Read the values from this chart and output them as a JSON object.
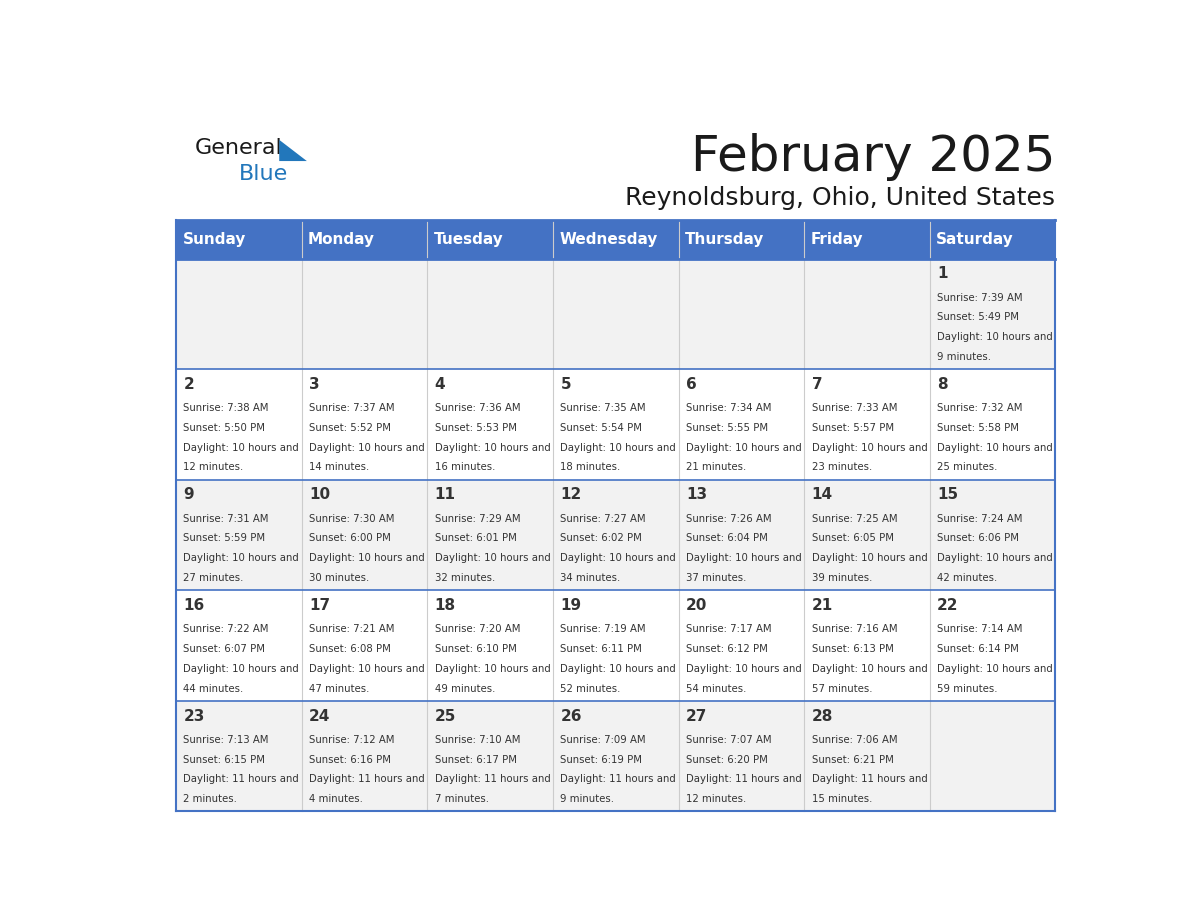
{
  "title": "February 2025",
  "subtitle": "Reynoldsburg, Ohio, United States",
  "header_color": "#4472C4",
  "header_text_color": "#FFFFFF",
  "border_color": "#4472C4",
  "day_names": [
    "Sunday",
    "Monday",
    "Tuesday",
    "Wednesday",
    "Thursday",
    "Friday",
    "Saturday"
  ],
  "title_color": "#1a1a1a",
  "subtitle_color": "#1a1a1a",
  "general_text_color": "#1a1a1a",
  "general_blue_color": "#2277BB",
  "cell_text_color": "#333333",
  "row_bg_light": "#F2F2F2",
  "row_bg_white": "#FFFFFF",
  "sep_line_color": "#4472C4",
  "vert_line_color": "#CCCCCC",
  "days": [
    {
      "day": 1,
      "col": 6,
      "row": 0,
      "sunrise": "7:39 AM",
      "sunset": "5:49 PM",
      "daylight": "10 hours and 9 minutes."
    },
    {
      "day": 2,
      "col": 0,
      "row": 1,
      "sunrise": "7:38 AM",
      "sunset": "5:50 PM",
      "daylight": "10 hours and 12 minutes."
    },
    {
      "day": 3,
      "col": 1,
      "row": 1,
      "sunrise": "7:37 AM",
      "sunset": "5:52 PM",
      "daylight": "10 hours and 14 minutes."
    },
    {
      "day": 4,
      "col": 2,
      "row": 1,
      "sunrise": "7:36 AM",
      "sunset": "5:53 PM",
      "daylight": "10 hours and 16 minutes."
    },
    {
      "day": 5,
      "col": 3,
      "row": 1,
      "sunrise": "7:35 AM",
      "sunset": "5:54 PM",
      "daylight": "10 hours and 18 minutes."
    },
    {
      "day": 6,
      "col": 4,
      "row": 1,
      "sunrise": "7:34 AM",
      "sunset": "5:55 PM",
      "daylight": "10 hours and 21 minutes."
    },
    {
      "day": 7,
      "col": 5,
      "row": 1,
      "sunrise": "7:33 AM",
      "sunset": "5:57 PM",
      "daylight": "10 hours and 23 minutes."
    },
    {
      "day": 8,
      "col": 6,
      "row": 1,
      "sunrise": "7:32 AM",
      "sunset": "5:58 PM",
      "daylight": "10 hours and 25 minutes."
    },
    {
      "day": 9,
      "col": 0,
      "row": 2,
      "sunrise": "7:31 AM",
      "sunset": "5:59 PM",
      "daylight": "10 hours and 27 minutes."
    },
    {
      "day": 10,
      "col": 1,
      "row": 2,
      "sunrise": "7:30 AM",
      "sunset": "6:00 PM",
      "daylight": "10 hours and 30 minutes."
    },
    {
      "day": 11,
      "col": 2,
      "row": 2,
      "sunrise": "7:29 AM",
      "sunset": "6:01 PM",
      "daylight": "10 hours and 32 minutes."
    },
    {
      "day": 12,
      "col": 3,
      "row": 2,
      "sunrise": "7:27 AM",
      "sunset": "6:02 PM",
      "daylight": "10 hours and 34 minutes."
    },
    {
      "day": 13,
      "col": 4,
      "row": 2,
      "sunrise": "7:26 AM",
      "sunset": "6:04 PM",
      "daylight": "10 hours and 37 minutes."
    },
    {
      "day": 14,
      "col": 5,
      "row": 2,
      "sunrise": "7:25 AM",
      "sunset": "6:05 PM",
      "daylight": "10 hours and 39 minutes."
    },
    {
      "day": 15,
      "col": 6,
      "row": 2,
      "sunrise": "7:24 AM",
      "sunset": "6:06 PM",
      "daylight": "10 hours and 42 minutes."
    },
    {
      "day": 16,
      "col": 0,
      "row": 3,
      "sunrise": "7:22 AM",
      "sunset": "6:07 PM",
      "daylight": "10 hours and 44 minutes."
    },
    {
      "day": 17,
      "col": 1,
      "row": 3,
      "sunrise": "7:21 AM",
      "sunset": "6:08 PM",
      "daylight": "10 hours and 47 minutes."
    },
    {
      "day": 18,
      "col": 2,
      "row": 3,
      "sunrise": "7:20 AM",
      "sunset": "6:10 PM",
      "daylight": "10 hours and 49 minutes."
    },
    {
      "day": 19,
      "col": 3,
      "row": 3,
      "sunrise": "7:19 AM",
      "sunset": "6:11 PM",
      "daylight": "10 hours and 52 minutes."
    },
    {
      "day": 20,
      "col": 4,
      "row": 3,
      "sunrise": "7:17 AM",
      "sunset": "6:12 PM",
      "daylight": "10 hours and 54 minutes."
    },
    {
      "day": 21,
      "col": 5,
      "row": 3,
      "sunrise": "7:16 AM",
      "sunset": "6:13 PM",
      "daylight": "10 hours and 57 minutes."
    },
    {
      "day": 22,
      "col": 6,
      "row": 3,
      "sunrise": "7:14 AM",
      "sunset": "6:14 PM",
      "daylight": "10 hours and 59 minutes."
    },
    {
      "day": 23,
      "col": 0,
      "row": 4,
      "sunrise": "7:13 AM",
      "sunset": "6:15 PM",
      "daylight": "11 hours and 2 minutes."
    },
    {
      "day": 24,
      "col": 1,
      "row": 4,
      "sunrise": "7:12 AM",
      "sunset": "6:16 PM",
      "daylight": "11 hours and 4 minutes."
    },
    {
      "day": 25,
      "col": 2,
      "row": 4,
      "sunrise": "7:10 AM",
      "sunset": "6:17 PM",
      "daylight": "11 hours and 7 minutes."
    },
    {
      "day": 26,
      "col": 3,
      "row": 4,
      "sunrise": "7:09 AM",
      "sunset": "6:19 PM",
      "daylight": "11 hours and 9 minutes."
    },
    {
      "day": 27,
      "col": 4,
      "row": 4,
      "sunrise": "7:07 AM",
      "sunset": "6:20 PM",
      "daylight": "11 hours and 12 minutes."
    },
    {
      "day": 28,
      "col": 5,
      "row": 4,
      "sunrise": "7:06 AM",
      "sunset": "6:21 PM",
      "daylight": "11 hours and 15 minutes."
    }
  ]
}
